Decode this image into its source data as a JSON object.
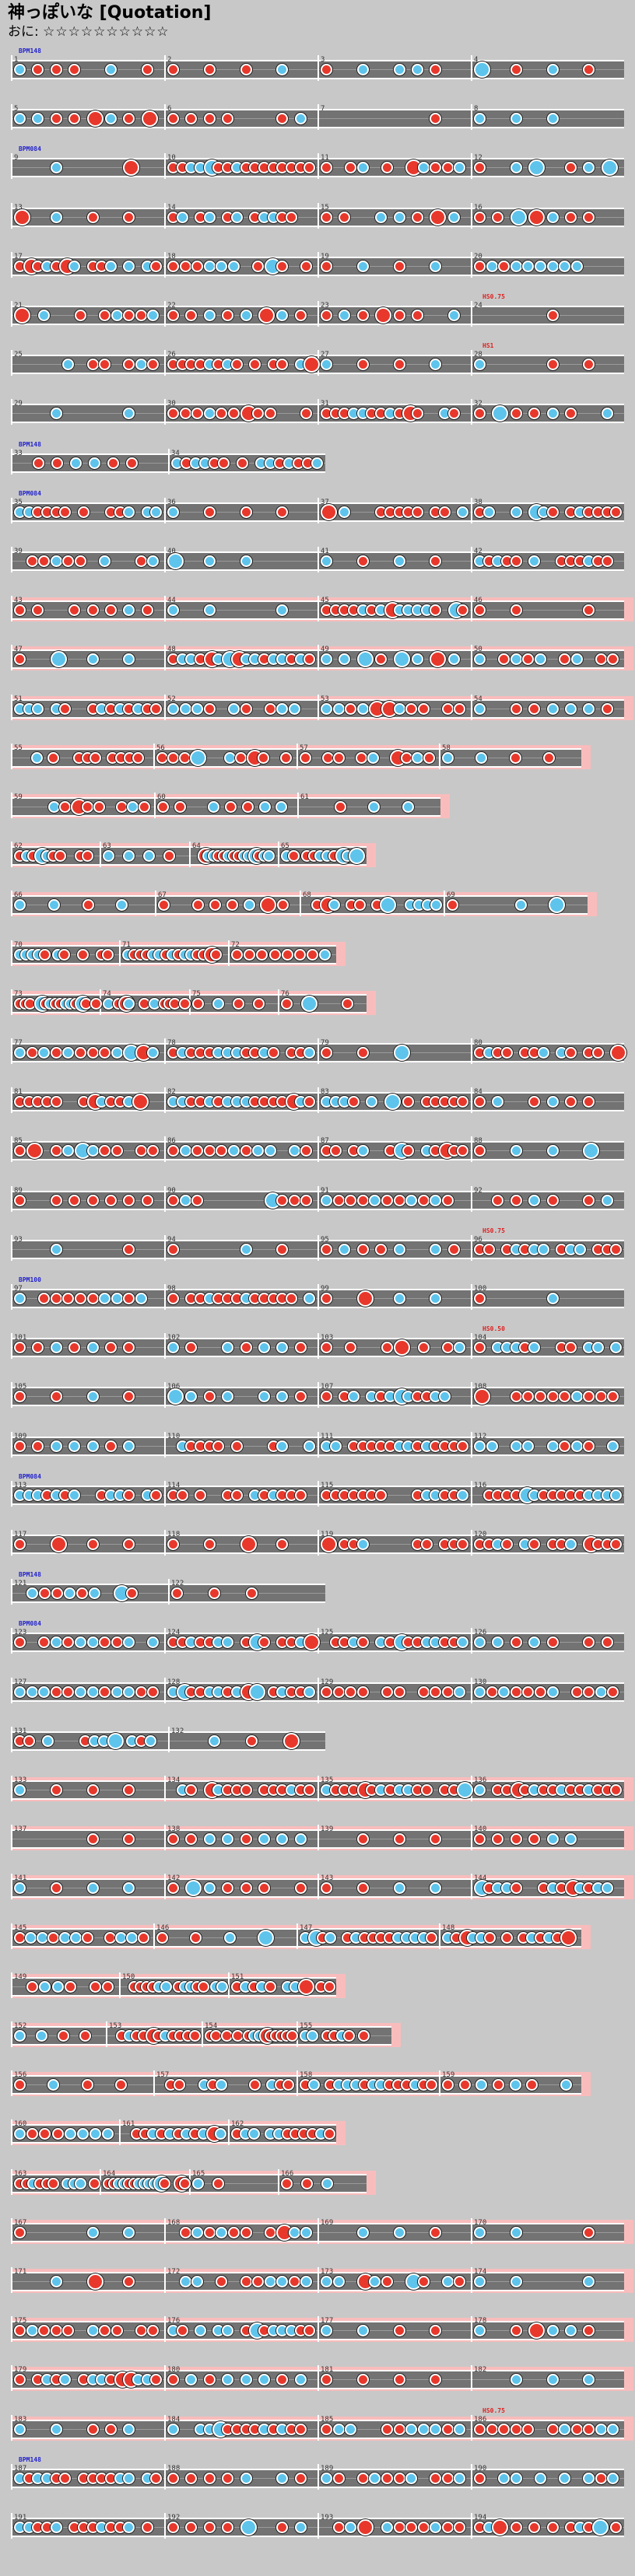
{
  "header": {
    "title": "神っぽいな [Quotation]",
    "difficulty_label": "おに",
    "difficulty_stars": "☆☆☆☆☆☆☆☆☆☆"
  },
  "colors": {
    "background": "#c8c8c8",
    "lane": "#737373",
    "row_highlight": "#f9bcbc",
    "don": "#e8382c",
    "ka": "#5ec4ec",
    "bpm_text": "#2222cc",
    "scroll_text": "#dd2222"
  },
  "rows": [
    {
      "measures": 4,
      "pink": false,
      "bpm": "BPM148",
      "start": 1
    },
    {
      "measures": 4,
      "pink": false,
      "start": 5
    },
    {
      "measures": 4,
      "pink": false,
      "bpm": "BPM084",
      "start": 9
    },
    {
      "measures": 4,
      "pink": false,
      "start": 13
    },
    {
      "measures": 4,
      "pink": false,
      "start": 17
    },
    {
      "measures": 4,
      "pink": false,
      "hs": "HS0.75",
      "start": 21
    },
    {
      "measures": 4,
      "pink": false,
      "hs": "HS1",
      "start": 25
    },
    {
      "measures": 4,
      "pink": false,
      "start": 29
    },
    {
      "measures": 2,
      "pink": false,
      "bpm": "BPM148",
      "start": 33
    },
    {
      "measures": 4,
      "pink": false,
      "bpm": "BPM084",
      "start": 35
    },
    {
      "measures": 4,
      "pink": false,
      "start": 39
    },
    {
      "measures": 4,
      "pink": true,
      "start": 43
    },
    {
      "measures": 4,
      "pink": true,
      "start": 47
    },
    {
      "measures": 4,
      "pink": true,
      "start": 51
    },
    {
      "measures": 4,
      "pink": true,
      "short": 0.93,
      "start": 55
    },
    {
      "measures": 3,
      "pink": true,
      "short": 0.7,
      "start": 59
    },
    {
      "measures": 4,
      "pink": true,
      "short": 0.58,
      "start": 62
    },
    {
      "measures": 4,
      "pink": true,
      "short": 0.94,
      "start": 66
    },
    {
      "measures": 3,
      "pink": true,
      "short": 0.53,
      "start": 70
    },
    {
      "measures": 4,
      "pink": true,
      "short": 0.58,
      "start": 73
    },
    {
      "measures": 4,
      "pink": false,
      "start": 77
    },
    {
      "measures": 4,
      "pink": false,
      "start": 81
    },
    {
      "measures": 4,
      "pink": false,
      "start": 85
    },
    {
      "measures": 4,
      "pink": false,
      "start": 89
    },
    {
      "measures": 4,
      "pink": false,
      "hs": "HS0.75",
      "start": 93
    },
    {
      "measures": 4,
      "pink": false,
      "bpm": "BPM100",
      "start": 97
    },
    {
      "measures": 4,
      "pink": false,
      "hs": "HS0.50",
      "start": 101
    },
    {
      "measures": 4,
      "pink": false,
      "start": 105
    },
    {
      "measures": 4,
      "pink": false,
      "start": 109
    },
    {
      "measures": 4,
      "pink": false,
      "bpm": "BPM084",
      "start": 113
    },
    {
      "measures": 4,
      "pink": false,
      "start": 117
    },
    {
      "measures": 2,
      "pink": false,
      "bpm": "BPM148",
      "start": 121
    },
    {
      "measures": 4,
      "pink": false,
      "bpm": "BPM084",
      "start": 123
    },
    {
      "measures": 4,
      "pink": false,
      "start": 127
    },
    {
      "measures": 2,
      "pink": false,
      "start": 131
    },
    {
      "measures": 4,
      "pink": true,
      "start": 133
    },
    {
      "measures": 4,
      "pink": true,
      "start": 137
    },
    {
      "measures": 4,
      "pink": true,
      "start": 141
    },
    {
      "measures": 4,
      "pink": true,
      "short": 0.93,
      "start": 145
    },
    {
      "measures": 3,
      "pink": true,
      "short": 0.53,
      "start": 149
    },
    {
      "measures": 4,
      "pink": true,
      "short": 0.62,
      "start": 152
    },
    {
      "measures": 4,
      "pink": true,
      "short": 0.93,
      "start": 156
    },
    {
      "measures": 3,
      "pink": true,
      "short": 0.53,
      "start": 160
    },
    {
      "measures": 4,
      "pink": true,
      "short": 0.58,
      "start": 163
    },
    {
      "measures": 4,
      "pink": true,
      "start": 167
    },
    {
      "measures": 4,
      "pink": true,
      "start": 171
    },
    {
      "measures": 4,
      "pink": true,
      "start": 175
    },
    {
      "measures": 4,
      "pink": true,
      "start": 179
    },
    {
      "measures": 4,
      "pink": true,
      "hs": "HS0.75",
      "start": 183
    },
    {
      "measures": 4,
      "pink": false,
      "bpm": "BPM148",
      "start": 187
    },
    {
      "measures": 4,
      "pink": false,
      "start": 191
    }
  ]
}
